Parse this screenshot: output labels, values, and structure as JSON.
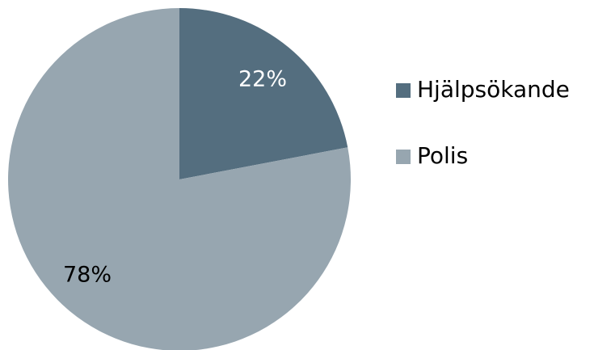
{
  "chart_data": {
    "type": "pie",
    "slices": [
      {
        "label": "Hjälpsökande",
        "value": 22,
        "display": "22%",
        "color": "#546e7f",
        "label_color": "#ffffff"
      },
      {
        "label": "Polis",
        "value": 78,
        "display": "78%",
        "color": "#97a6b0",
        "label_color": "#000000"
      }
    ],
    "legend": {
      "placement": "right",
      "entries": [
        "Hjälpsökande",
        "Polis"
      ]
    }
  }
}
